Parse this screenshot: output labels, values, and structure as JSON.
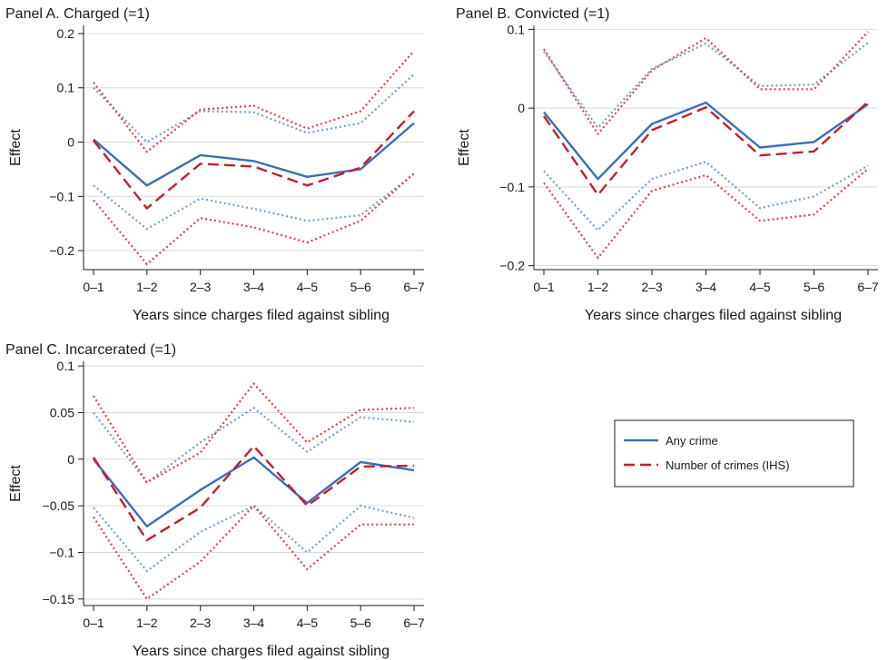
{
  "figure": {
    "legend": {
      "position": "middle-right",
      "entries": [
        {
          "label": "Any crime",
          "style": "solid",
          "color": "#3b6fb6"
        },
        {
          "label": "Number of crimes (IHS)",
          "style": "dashed",
          "color": "#c0202f"
        }
      ]
    },
    "colors": {
      "any_crime": "#3b6fb6",
      "any_crime_ci": "#6f9fd8",
      "ihs": "#c0202f",
      "ihs_ci": "#d9434e",
      "grid": "#d9d9d9"
    }
  },
  "chart_data": [
    {
      "type": "line",
      "title": "Panel A. Charged (=1)",
      "xlabel": "Years since charges filed against sibling",
      "ylabel": "Effect",
      "categories": [
        "0–1",
        "1–2",
        "2–3",
        "3–4",
        "4–5",
        "5–6",
        "6–7"
      ],
      "ylim": [
        -0.235,
        0.215
      ],
      "yticks": [
        0.2,
        0.1,
        0,
        -0.1,
        -0.2
      ],
      "ytick_labels": [
        "0.2",
        "0.1",
        "0",
        "−0.1",
        "−0.2"
      ],
      "grid": true,
      "series": [
        {
          "name": "Any crime",
          "values": [
            0.005,
            -0.08,
            -0.024,
            -0.035,
            -0.064,
            -0.05,
            0.035
          ]
        },
        {
          "name": "Number of crimes (IHS)",
          "values": [
            0.003,
            -0.122,
            -0.04,
            -0.045,
            -0.08,
            -0.047,
            0.057
          ]
        },
        {
          "values": [
            0.1,
            0.0,
            0.057,
            0.055,
            0.017,
            0.035,
            0.125
          ]
        },
        {
          "values": [
            -0.08,
            -0.16,
            -0.104,
            -0.123,
            -0.145,
            -0.135,
            -0.058
          ]
        },
        {
          "values": [
            0.11,
            -0.018,
            0.06,
            0.067,
            0.025,
            0.057,
            0.168
          ]
        },
        {
          "values": [
            -0.107,
            -0.225,
            -0.14,
            -0.157,
            -0.185,
            -0.145,
            -0.058
          ]
        }
      ]
    },
    {
      "type": "line",
      "title": "Panel B. Convicted (=1)",
      "xlabel": "Years since charges filed against sibling",
      "ylabel": "Effect",
      "categories": [
        "0–1",
        "1–2",
        "2–3",
        "3–4",
        "4–5",
        "5–6",
        "6–7"
      ],
      "ylim": [
        -0.205,
        0.105
      ],
      "yticks": [
        0.1,
        0,
        -0.1,
        -0.2
      ],
      "ytick_labels": [
        "0.1",
        "0",
        "−0.1",
        "−0.2"
      ],
      "grid": true,
      "series": [
        {
          "name": "Any crime",
          "values": [
            -0.005,
            -0.09,
            -0.02,
            0.007,
            -0.05,
            -0.043,
            0.005
          ]
        },
        {
          "name": "Number of crimes (IHS)",
          "values": [
            -0.01,
            -0.11,
            -0.028,
            0.001,
            -0.06,
            -0.055,
            0.008
          ]
        },
        {
          "values": [
            0.072,
            -0.025,
            0.05,
            0.082,
            0.028,
            0.03,
            0.083
          ]
        },
        {
          "values": [
            -0.08,
            -0.155,
            -0.09,
            -0.068,
            -0.127,
            -0.112,
            -0.073
          ]
        },
        {
          "values": [
            0.075,
            -0.033,
            0.048,
            0.089,
            0.024,
            0.024,
            0.097
          ]
        },
        {
          "values": [
            -0.095,
            -0.19,
            -0.105,
            -0.085,
            -0.143,
            -0.135,
            -0.077
          ]
        }
      ]
    },
    {
      "type": "line",
      "title": "Panel C. Incarcerated (=1)",
      "xlabel": "Years since charges filed against sibling",
      "ylabel": "Effect",
      "categories": [
        "0–1",
        "1–2",
        "2–3",
        "3–4",
        "4–5",
        "5–6",
        "6–7"
      ],
      "ylim": [
        -0.157,
        0.105
      ],
      "yticks": [
        0.1,
        0.05,
        0,
        -0.05,
        -0.1,
        -0.15
      ],
      "ytick_labels": [
        "0.1",
        "0.05",
        "0",
        "−0.05",
        "−0.1",
        "−0.15"
      ],
      "grid": true,
      "series": [
        {
          "name": "Any crime",
          "values": [
            0.0,
            -0.072,
            -0.033,
            0.002,
            -0.047,
            -0.003,
            -0.012
          ]
        },
        {
          "name": "Number of crimes (IHS)",
          "values": [
            0.002,
            -0.087,
            -0.052,
            0.014,
            -0.05,
            -0.008,
            -0.007
          ]
        },
        {
          "values": [
            0.05,
            -0.025,
            0.018,
            0.055,
            0.008,
            0.045,
            0.04
          ]
        },
        {
          "values": [
            -0.052,
            -0.12,
            -0.078,
            -0.05,
            -0.1,
            -0.05,
            -0.063
          ]
        },
        {
          "values": [
            0.068,
            -0.025,
            0.007,
            0.081,
            0.018,
            0.053,
            0.055
          ]
        },
        {
          "values": [
            -0.062,
            -0.15,
            -0.11,
            -0.05,
            -0.118,
            -0.07,
            -0.07
          ]
        }
      ]
    }
  ]
}
